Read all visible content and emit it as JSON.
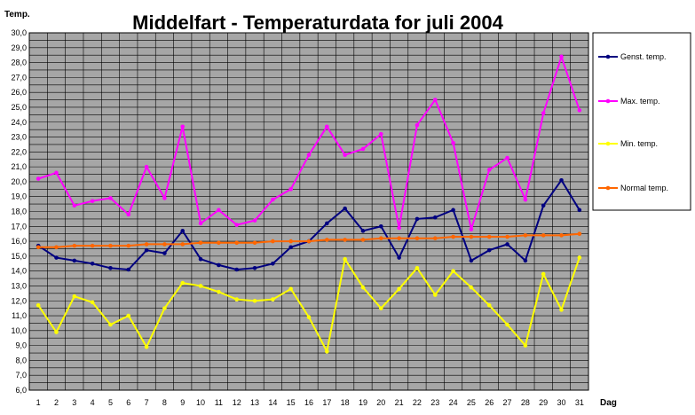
{
  "chart_data": {
    "type": "line",
    "title": "Middelfart - Temperaturdata for juli 2004",
    "ylabel": "Temp.",
    "xlabel": "Dag",
    "ylim": [
      6,
      30
    ],
    "ytick_step": 0.5,
    "ylabel_step": 1,
    "grid": true,
    "legend_position": "right",
    "plot_background": "#a6a6a6",
    "x": [
      1,
      2,
      3,
      4,
      5,
      6,
      7,
      8,
      9,
      10,
      11,
      12,
      13,
      14,
      15,
      16,
      17,
      18,
      19,
      20,
      21,
      22,
      23,
      24,
      25,
      26,
      27,
      28,
      29,
      30,
      31
    ],
    "series": [
      {
        "name": "Genst. temp.",
        "color": "#000080",
        "values": [
          15.7,
          14.9,
          14.7,
          14.5,
          14.2,
          14.1,
          15.4,
          15.2,
          16.7,
          14.8,
          14.4,
          14.1,
          14.2,
          14.5,
          15.6,
          16.0,
          17.2,
          18.2,
          16.7,
          17.0,
          14.9,
          17.5,
          17.6,
          18.1,
          14.7,
          15.4,
          15.8,
          14.7,
          18.4,
          20.1,
          18.1
        ]
      },
      {
        "name": "Max. temp.",
        "color": "#ff00ff",
        "values": [
          20.2,
          20.6,
          18.4,
          18.7,
          18.9,
          17.8,
          21.0,
          18.9,
          23.7,
          17.2,
          18.1,
          17.1,
          17.4,
          18.8,
          19.5,
          21.8,
          23.7,
          21.8,
          22.2,
          23.2,
          16.9,
          23.8,
          25.5,
          22.6,
          16.8,
          20.8,
          21.6,
          18.8,
          24.6,
          28.4,
          24.8
        ]
      },
      {
        "name": "Min. temp.",
        "color": "#ffff00",
        "values": [
          11.7,
          9.9,
          12.3,
          11.9,
          10.4,
          11.0,
          8.9,
          11.5,
          13.2,
          13.0,
          12.6,
          12.1,
          12.0,
          12.1,
          12.8,
          10.9,
          8.6,
          14.8,
          12.9,
          11.5,
          12.8,
          14.2,
          12.4,
          14.0,
          12.9,
          11.7,
          10.4,
          9.0,
          13.8,
          11.4,
          14.9
        ]
      },
      {
        "name": "Normal temp.",
        "color": "#ff6600",
        "values": [
          15.6,
          15.6,
          15.7,
          15.7,
          15.7,
          15.7,
          15.8,
          15.8,
          15.8,
          15.9,
          15.9,
          15.9,
          15.9,
          16.0,
          16.0,
          16.0,
          16.1,
          16.1,
          16.1,
          16.2,
          16.2,
          16.2,
          16.2,
          16.3,
          16.3,
          16.3,
          16.3,
          16.4,
          16.4,
          16.4,
          16.5
        ]
      }
    ]
  }
}
